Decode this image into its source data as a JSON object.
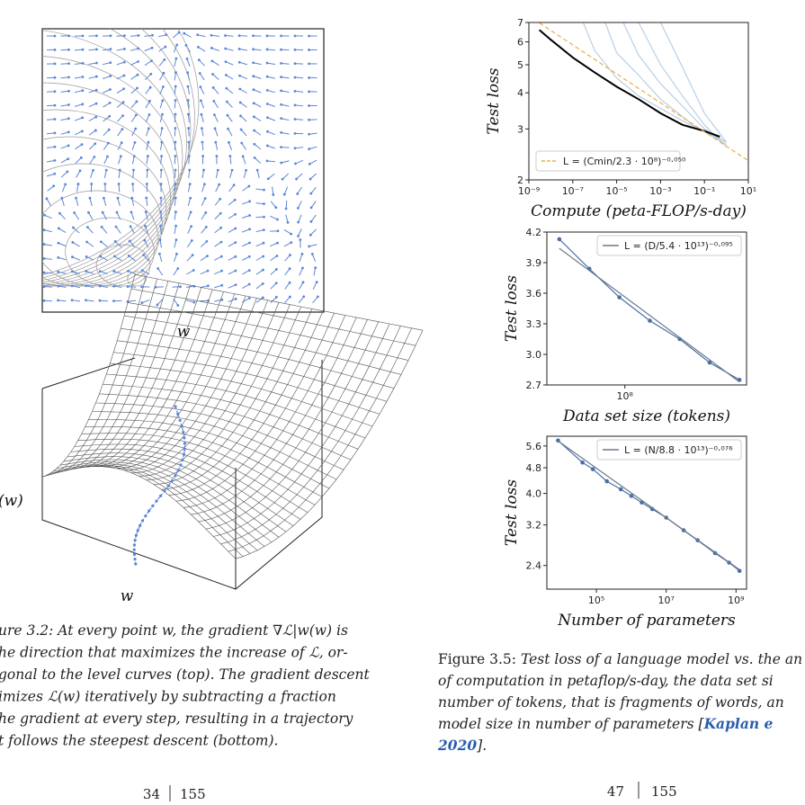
{
  "left_page": {
    "figure_top": {
      "x_label": "w"
    },
    "figure_bottom": {
      "x_label": "w",
      "z_label": "(w)"
    },
    "caption": [
      "ure 3.2: At every point w, the gradient ∇ℒ|w(w) is",
      "he direction that maximizes the increase of ℒ, or-",
      "gonal to the level curves (top). The gradient descent",
      "imizes ℒ(w) iteratively by subtracting a fraction",
      "he gradient at every step, resulting in a trajectory",
      "t follows the steepest descent (bottom)."
    ],
    "page_number": "34",
    "page_total": "155"
  },
  "right_page": {
    "charts": [
      {
        "type": "line",
        "x_label": "Compute (peta-FLOP/s-day)",
        "y_label": "Test loss",
        "log_x": true,
        "log_y": true,
        "xlim": [
          1e-09,
          10
        ],
        "ylim": [
          2,
          7
        ],
        "xticks": [
          {
            "value": 1e-09,
            "label": "10⁻⁹"
          },
          {
            "value": 1e-07,
            "label": "10⁻⁷"
          },
          {
            "value": 1e-05,
            "label": "10⁻⁵"
          },
          {
            "value": 0.001,
            "label": "10⁻³"
          },
          {
            "value": 0.1,
            "label": "10⁻¹"
          },
          {
            "value": 10,
            "label": "10¹"
          }
        ],
        "yticks": [
          2,
          3,
          4,
          5,
          6,
          7
        ],
        "legend": "lower left",
        "series": [
          {
            "color": "#b8cfe6",
            "x": [
              3e-07,
              1e-06,
              1e-05,
              0.0001,
              0.01,
              1
            ],
            "values": [
              7,
              5.6,
              4.5,
              3.9,
              3.2,
              2.7
            ]
          },
          {
            "color": "#b8cfe6",
            "x": [
              3e-06,
              1e-05,
              0.0001,
              0.001,
              0.03,
              1
            ],
            "values": [
              7,
              5.5,
              4.6,
              3.8,
              3.1,
              2.65
            ]
          },
          {
            "color": "#b8cfe6",
            "x": [
              2e-05,
              0.0001,
              0.001,
              0.01,
              0.1,
              1
            ],
            "values": [
              7,
              5.4,
              4.3,
              3.6,
              3.0,
              2.7
            ]
          },
          {
            "color": "#b8cfe6",
            "x": [
              0.0001,
              0.001,
              0.01,
              0.1,
              1
            ],
            "values": [
              7,
              5.0,
              3.9,
              3.1,
              2.6
            ]
          },
          {
            "color": "#b8cfe6",
            "x": [
              0.001,
              0.01,
              0.1,
              1
            ],
            "values": [
              7,
              4.9,
              3.4,
              2.7
            ]
          },
          {
            "color": "#000000",
            "width": 2,
            "x": [
              3e-09,
              1e-08,
              1e-07,
              1e-06,
              1e-05,
              0.0001,
              0.001,
              0.01,
              0.1,
              0.5
            ],
            "values": [
              6.6,
              6.1,
              5.3,
              4.7,
              4.2,
              3.8,
              3.4,
              3.1,
              2.95,
              2.82
            ]
          },
          {
            "name": "L = (Cmin/2.3 · 10⁸)⁻⁰·⁰⁵⁰",
            "color": "#e8b04a",
            "dash": true,
            "x": [
              3e-09,
              10
            ],
            "values": [
              6.98,
              2.33
            ]
          }
        ]
      },
      {
        "type": "line",
        "x_label": "Data set size (tokens)",
        "y_label": "Test loss",
        "log_x": true,
        "log_y": false,
        "xlim": [
          16500000,
          1660000000
        ],
        "ylim": [
          2.7,
          4.2
        ],
        "xticks": [
          {
            "value": 100000000,
            "label": "10⁸"
          }
        ],
        "yticks": [
          2.7,
          {
            "value": 3,
            "label": "3.0"
          },
          3.3,
          3.6,
          3.9,
          4.2
        ],
        "legend": "upper right",
        "series": [
          {
            "color": "#4a6fa5",
            "marker": true,
            "x": [
              22000000,
              44000000,
              88000000,
              178000000,
              355000000,
              708000000,
              1410000000
            ],
            "values": [
              4.13,
              3.84,
              3.56,
              3.33,
              3.15,
              2.92,
              2.75
            ]
          },
          {
            "name": "L = (D/5.4 · 10¹³)⁻⁰·⁰⁹⁵",
            "color": "#6b7a8a",
            "x": [
              22000000,
              1410000000
            ],
            "values": [
              4.04,
              2.73
            ]
          }
        ]
      },
      {
        "type": "line",
        "x_label": "Number of parameters",
        "y_label": "Test loss",
        "log_x": true,
        "log_y": true,
        "xlim": [
          3800,
          2000000000
        ],
        "ylim": [
          2.03,
          6.0
        ],
        "xticks": [
          {
            "value": 100000,
            "label": "10⁵"
          },
          {
            "value": 10000000,
            "label": "10⁷"
          },
          {
            "value": 1000000000,
            "label": "10⁹"
          }
        ],
        "yticks": [
          2.4,
          3.2,
          {
            "value": 4,
            "label": "4.0"
          },
          4.8,
          5.6
        ],
        "legend": "upper right",
        "series": [
          {
            "color": "#4a6fa5",
            "marker": true,
            "x": [
              7943,
              39811,
              79433,
              199526,
              501187,
              1000000,
              1995262,
              3981072,
              10000000,
              31622777,
              79432823,
              251188643,
              630957344,
              1258925412
            ],
            "values": [
              5.82,
              4.98,
              4.75,
              4.36,
              4.12,
              3.93,
              3.75,
              3.58,
              3.37,
              3.08,
              2.87,
              2.62,
              2.45,
              2.31
            ]
          },
          {
            "name": "L = (N/8.8 · 10¹³)⁻⁰·⁰⁷⁶",
            "color": "#6b7a8a",
            "x": [
              7943,
              1258925412
            ],
            "values": [
              5.8,
              2.33
            ]
          }
        ]
      }
    ],
    "caption": [
      [
        "Figure 3.5: ",
        "Test loss of a language model vs. the an"
      ],
      [
        "of computation in petaflop/s-day, the data set si"
      ],
      [
        "number of tokens, that is fragments of words, an"
      ],
      [
        "model size in number of parameters [",
        "Kaplan e"
      ],
      [
        "2020",
        "]."
      ]
    ],
    "page_number": "47",
    "page_total": "155"
  }
}
